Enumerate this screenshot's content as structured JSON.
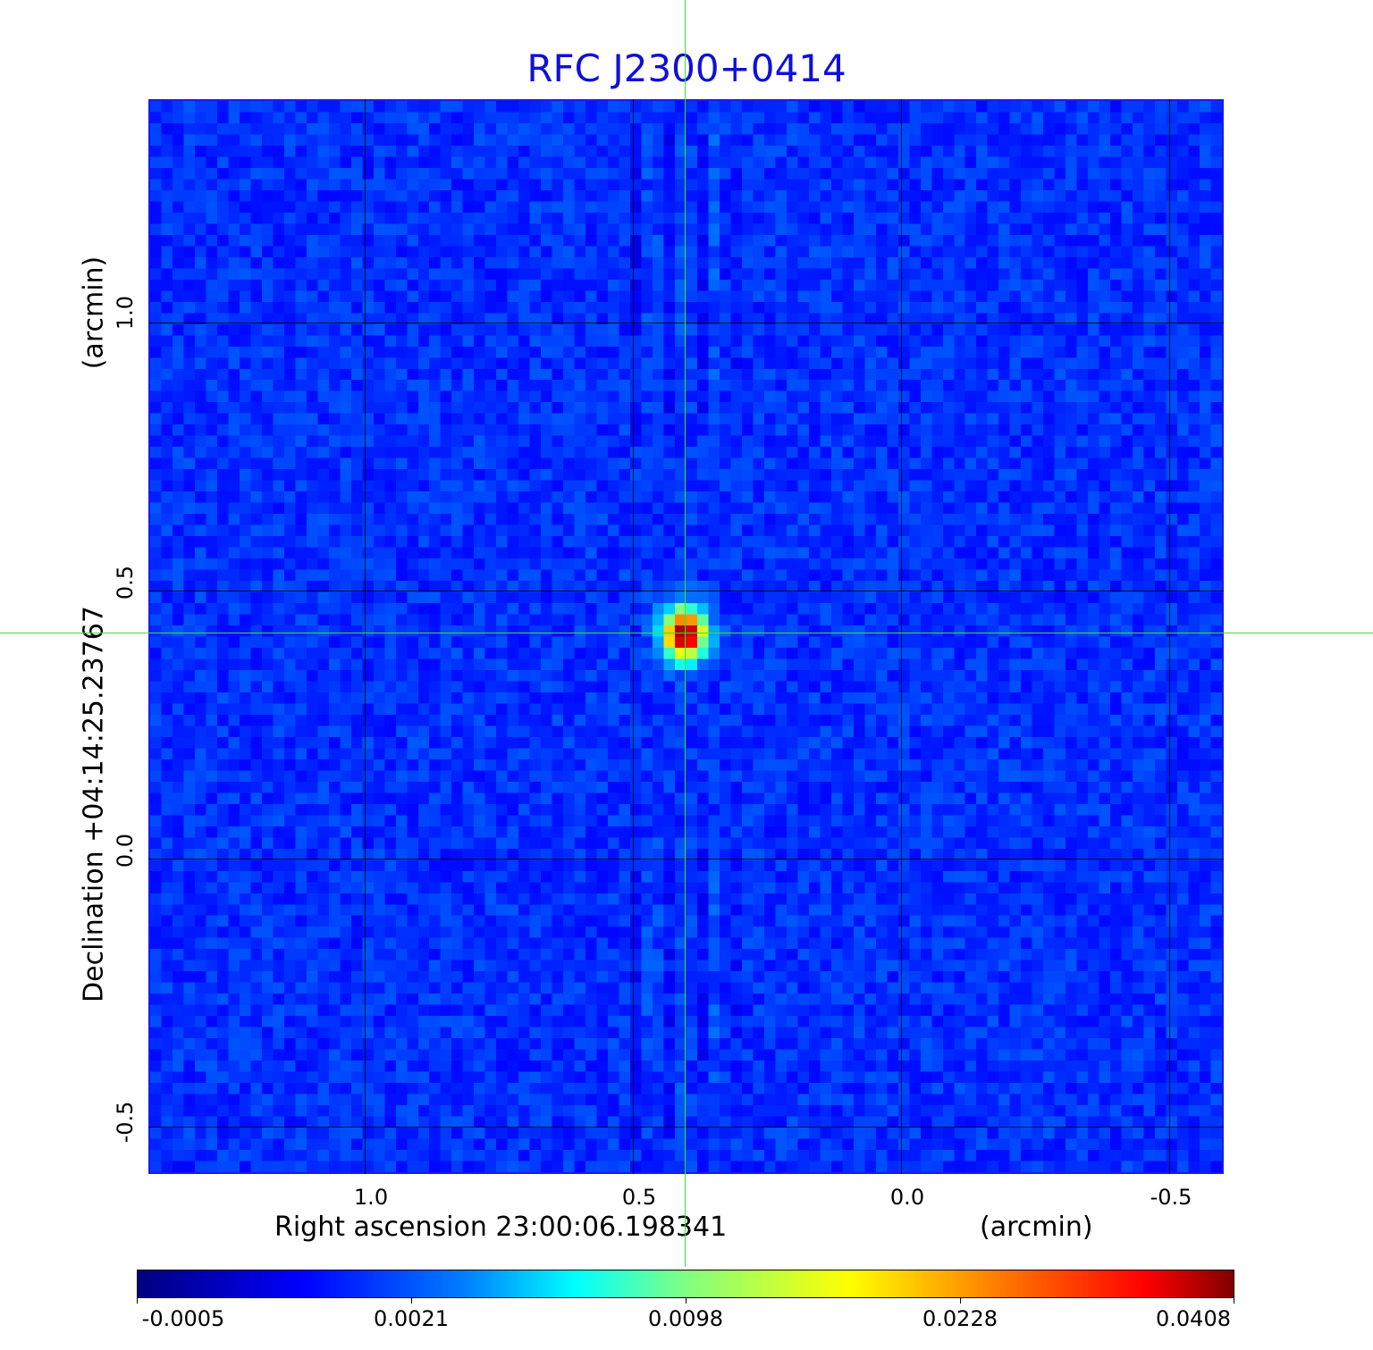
{
  "title": "RFC J2300+0414",
  "x_axis": {
    "label": "Right ascension  23:00:06.198341",
    "unit": "(arcmin)",
    "ticks": [
      "1.0",
      "0.5",
      "0.0",
      "-0.5"
    ]
  },
  "y_axis": {
    "label": "Declination  +04:14:25.23767",
    "unit": "(arcmin)",
    "ticks": [
      "1.0",
      "0.5",
      "0.0",
      "-0.5"
    ]
  },
  "colorbar": {
    "ticks": [
      "-0.0005",
      "0.0021",
      "0.0098",
      "0.0228",
      "0.0408"
    ],
    "colormap": "jet"
  },
  "colors": {
    "title": "#1010d8",
    "background_field": "#1a3cf0",
    "crosshair": "#32e632"
  }
}
